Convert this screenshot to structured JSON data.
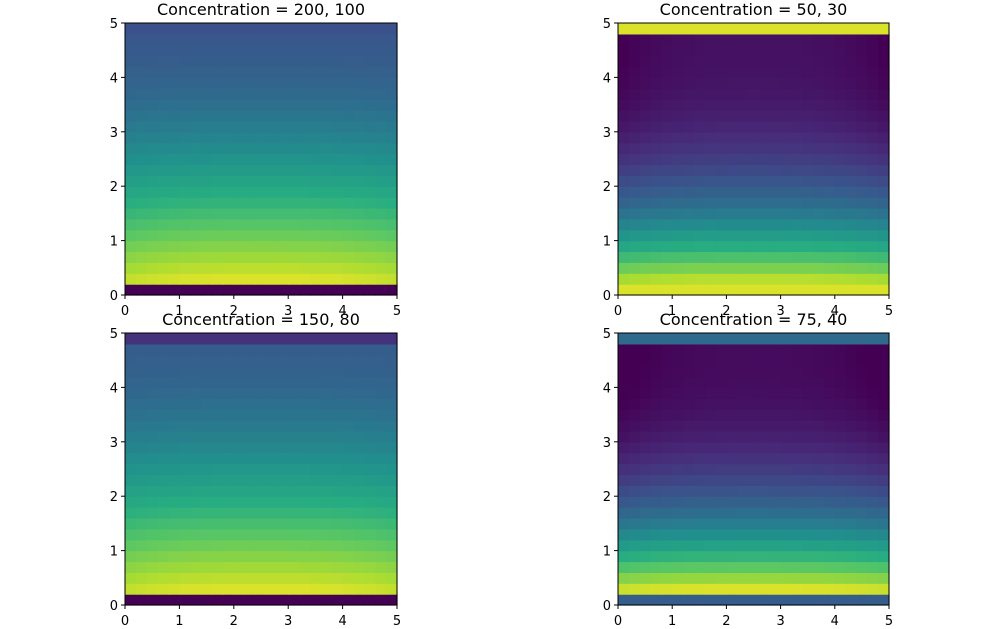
{
  "chart_data": [
    {
      "type": "heatmap",
      "title": "Concentration = 200, 100",
      "boundary": {
        "bottom": 0.0,
        "top": 0.25
      },
      "profile": {
        "min": 0.28,
        "max": 0.95,
        "shape": "decay"
      },
      "x_ticks": [
        "0",
        "1",
        "2",
        "3",
        "4",
        "5"
      ],
      "y_ticks": [
        "0",
        "1",
        "2",
        "3",
        "4",
        "5"
      ],
      "xlim": [
        0,
        5
      ],
      "ylim": [
        0,
        5
      ],
      "grid_cells": [
        25,
        25
      ],
      "colormap": "viridis"
    },
    {
      "type": "heatmap",
      "title": "Concentration = 50, 30",
      "boundary": {
        "bottom": 0.95,
        "top": 0.95
      },
      "profile": {
        "min": 0.05,
        "max": 0.9,
        "shape": "edge-dip"
      },
      "x_ticks": [
        "0",
        "1",
        "2",
        "3",
        "4",
        "5"
      ],
      "y_ticks": [
        "0",
        "1",
        "2",
        "3",
        "4",
        "5"
      ],
      "xlim": [
        0,
        5
      ],
      "ylim": [
        0,
        5
      ],
      "grid_cells": [
        25,
        25
      ],
      "colormap": "viridis"
    },
    {
      "type": "heatmap",
      "title": "Concentration = 150, 80",
      "boundary": {
        "bottom": 0.0,
        "top": 0.15
      },
      "profile": {
        "min": 0.3,
        "max": 0.95,
        "shape": "decay"
      },
      "x_ticks": [
        "0",
        "1",
        "2",
        "3",
        "4",
        "5"
      ],
      "y_ticks": [
        "0",
        "1",
        "2",
        "3",
        "4",
        "5"
      ],
      "xlim": [
        0,
        5
      ],
      "ylim": [
        0,
        5
      ],
      "grid_cells": [
        25,
        25
      ],
      "colormap": "viridis"
    },
    {
      "type": "heatmap",
      "title": "Concentration = 75, 40",
      "boundary": {
        "bottom": 0.3,
        "top": 0.35
      },
      "profile": {
        "min": 0.03,
        "max": 0.95,
        "shape": "edge-dip"
      },
      "x_ticks": [
        "0",
        "1",
        "2",
        "3",
        "4",
        "5"
      ],
      "y_ticks": [
        "0",
        "1",
        "2",
        "3",
        "4",
        "5"
      ],
      "xlim": [
        0,
        5
      ],
      "ylim": [
        0,
        5
      ],
      "grid_cells": [
        25,
        25
      ],
      "colormap": "viridis"
    }
  ]
}
